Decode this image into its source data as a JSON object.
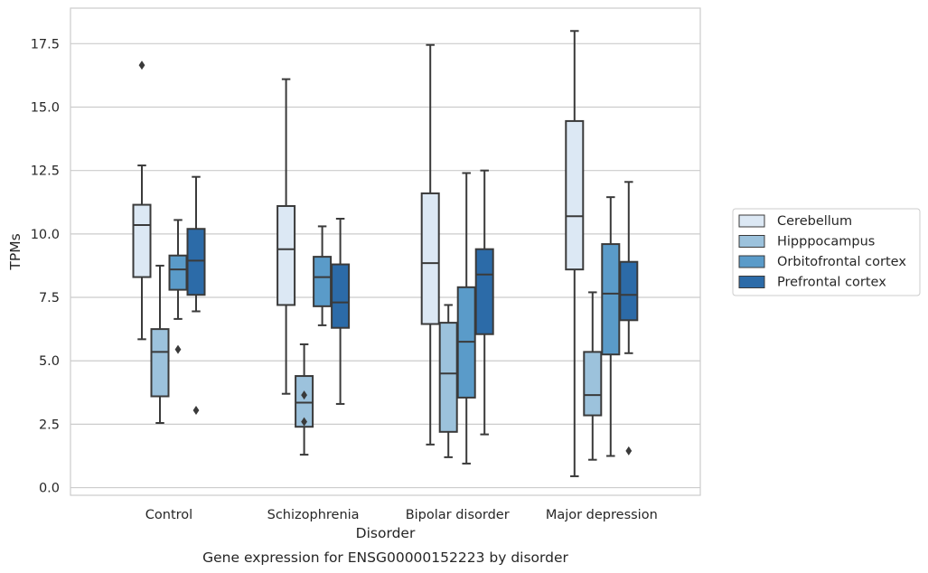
{
  "chart_data": {
    "type": "box",
    "title": "",
    "caption": "Gene expression for ENSG00000152223 by disorder",
    "xlabel": "Disorder",
    "ylabel": "TPMs",
    "ylim": [
      -0.3,
      18.9
    ],
    "yticks": [
      0.0,
      2.5,
      5.0,
      7.5,
      10.0,
      12.5,
      15.0,
      17.5
    ],
    "ytick_labels": [
      "0.0",
      "2.5",
      "5.0",
      "7.5",
      "10.0",
      "12.5",
      "15.0",
      "17.5"
    ],
    "grid": "horizontal",
    "legend_position": "right",
    "categories": [
      "Control",
      "Schizophrenia",
      "Bipolar disorder",
      "Major depression"
    ],
    "series": [
      {
        "name": "Cerebellum",
        "color": "#dce8f4",
        "boxes": [
          {
            "whisker_low": 5.85,
            "q1": 8.3,
            "median": 10.35,
            "q3": 11.15,
            "whisker_high": 12.7,
            "outliers": [
              16.65
            ]
          },
          {
            "whisker_low": 3.7,
            "q1": 7.2,
            "median": 9.4,
            "q3": 11.1,
            "whisker_high": 16.1,
            "outliers": []
          },
          {
            "whisker_low": 1.7,
            "q1": 6.45,
            "median": 8.85,
            "q3": 11.6,
            "whisker_high": 17.45,
            "outliers": []
          },
          {
            "whisker_low": 0.45,
            "q1": 8.6,
            "median": 10.7,
            "q3": 14.45,
            "whisker_high": 18.0,
            "outliers": []
          }
        ]
      },
      {
        "name": "Hipppocampus",
        "color": "#9cc2dc",
        "boxes": [
          {
            "whisker_low": 2.55,
            "q1": 3.6,
            "median": 5.35,
            "q3": 6.25,
            "whisker_high": 8.75,
            "outliers": []
          },
          {
            "whisker_low": 1.3,
            "q1": 2.4,
            "median": 3.35,
            "q3": 4.4,
            "whisker_high": 5.65,
            "outliers": [
              3.65,
              2.6
            ]
          },
          {
            "whisker_low": 1.2,
            "q1": 2.2,
            "median": 4.5,
            "q3": 6.5,
            "whisker_high": 7.2,
            "outliers": []
          },
          {
            "whisker_low": 1.1,
            "q1": 2.85,
            "median": 3.65,
            "q3": 5.35,
            "whisker_high": 7.7,
            "outliers": []
          }
        ]
      },
      {
        "name": "Orbitofrontal cortex",
        "color": "#5a9bc9",
        "boxes": [
          {
            "whisker_low": 6.65,
            "q1": 7.8,
            "median": 8.6,
            "q3": 9.15,
            "whisker_high": 10.55,
            "outliers": [
              5.45
            ]
          },
          {
            "whisker_low": 6.4,
            "q1": 7.15,
            "median": 8.3,
            "q3": 9.1,
            "whisker_high": 10.3,
            "outliers": []
          },
          {
            "whisker_low": 0.95,
            "q1": 3.55,
            "median": 5.75,
            "q3": 7.9,
            "whisker_high": 12.4,
            "outliers": []
          },
          {
            "whisker_low": 1.25,
            "q1": 5.25,
            "median": 7.65,
            "q3": 9.6,
            "whisker_high": 11.45,
            "outliers": []
          }
        ]
      },
      {
        "name": "Prefrontal cortex",
        "color": "#2c6ba8",
        "boxes": [
          {
            "whisker_low": 6.95,
            "q1": 7.6,
            "median": 8.95,
            "q3": 10.2,
            "whisker_high": 12.25,
            "outliers": [
              3.05
            ]
          },
          {
            "whisker_low": 3.3,
            "q1": 6.3,
            "median": 7.3,
            "q3": 8.8,
            "whisker_high": 10.6,
            "outliers": []
          },
          {
            "whisker_low": 2.1,
            "q1": 6.05,
            "median": 8.4,
            "q3": 9.4,
            "whisker_high": 12.5,
            "outliers": []
          },
          {
            "whisker_low": 5.3,
            "q1": 6.6,
            "median": 7.6,
            "q3": 8.9,
            "whisker_high": 12.05,
            "outliers": [
              1.45
            ]
          }
        ]
      }
    ]
  }
}
